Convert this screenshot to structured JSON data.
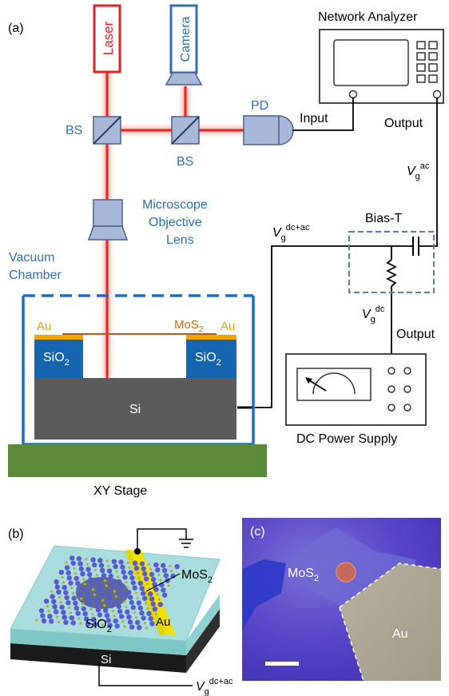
{
  "panel_a": {
    "label": "(a)",
    "laser": "Laser",
    "camera": "Camera",
    "network_analyzer": "Network Analyzer",
    "pd": "PD",
    "bs_left": "BS",
    "bs_right": "BS",
    "input": "Input",
    "output_na": "Output",
    "vg_ac": {
      "base": "V",
      "sub": "g",
      "sup": "ac"
    },
    "objective": [
      "Microscope",
      "Objective",
      "Lens"
    ],
    "vacuum": [
      "Vacuum",
      "Chamber"
    ],
    "bias_t": "Bias-T",
    "vg_dcac": {
      "base": "V",
      "sub": "g",
      "sup": "dc+ac"
    },
    "vg_dc": {
      "base": "V",
      "sub": "g",
      "sup": "dc"
    },
    "output_dc": "Output",
    "au_left": "Au",
    "mos2": {
      "base": "MoS",
      "sub": "2"
    },
    "au_right": "Au",
    "sio2_left": {
      "base": "SiO",
      "sub": "2"
    },
    "sio2_right": {
      "base": "SiO",
      "sub": "2"
    },
    "si": "Si",
    "dc_power_supply": "DC Power Supply",
    "xy_stage": "XY Stage"
  },
  "panel_b": {
    "label": "(b)",
    "mos2": {
      "base": "MoS",
      "sub": "2"
    },
    "sio2": {
      "base": "SiO",
      "sub": "2"
    },
    "au": "Au",
    "si": "Si",
    "vg": {
      "base": "V",
      "sub": "g",
      "sup": "dc+ac"
    }
  },
  "panel_c": {
    "label": "(c)",
    "mos2": {
      "base": "MoS",
      "sub": "2"
    },
    "au": "Au"
  },
  "colors": {
    "laser_red": "#e8231f",
    "blue": "#2f6fb5",
    "optic_fill": "#a8b8d8",
    "optic_stroke": "#4a5f8a",
    "sio2": "#1565b0",
    "si": "#5b5b5b",
    "gold": "#f0a800",
    "stage": "#5a8a3a",
    "slab_top": "#a9dcdc"
  }
}
